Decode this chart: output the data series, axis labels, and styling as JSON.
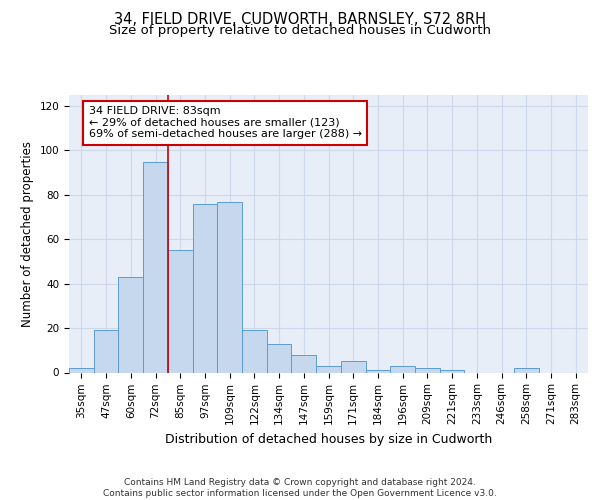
{
  "title": "34, FIELD DRIVE, CUDWORTH, BARNSLEY, S72 8RH",
  "subtitle": "Size of property relative to detached houses in Cudworth",
  "xlabel": "Distribution of detached houses by size in Cudworth",
  "ylabel": "Number of detached properties",
  "categories": [
    "35sqm",
    "47sqm",
    "60sqm",
    "72sqm",
    "85sqm",
    "97sqm",
    "109sqm",
    "122sqm",
    "134sqm",
    "147sqm",
    "159sqm",
    "171sqm",
    "184sqm",
    "196sqm",
    "209sqm",
    "221sqm",
    "233sqm",
    "246sqm",
    "258sqm",
    "271sqm",
    "283sqm"
  ],
  "values": [
    2,
    19,
    43,
    95,
    55,
    76,
    77,
    19,
    13,
    8,
    3,
    5,
    1,
    3,
    2,
    1,
    0,
    0,
    2,
    0,
    0
  ],
  "bar_color": "#c5d8ed",
  "bar_edge_color": "#5b9bd5",
  "grid_color": "#cdd8ea",
  "background_color": "#e8eef8",
  "annotation_text": "34 FIELD DRIVE: 83sqm\n← 29% of detached houses are smaller (123)\n69% of semi-detached houses are larger (288) →",
  "annotation_box_color": "white",
  "annotation_box_edge": "#cc0000",
  "ylim": [
    0,
    125
  ],
  "yticks": [
    0,
    20,
    40,
    60,
    80,
    100,
    120
  ],
  "footer": "Contains HM Land Registry data © Crown copyright and database right 2024.\nContains public sector information licensed under the Open Government Licence v3.0.",
  "title_fontsize": 10.5,
  "subtitle_fontsize": 9.5,
  "xlabel_fontsize": 9,
  "ylabel_fontsize": 8.5,
  "tick_fontsize": 7.5,
  "annotation_fontsize": 8,
  "footer_fontsize": 6.5
}
